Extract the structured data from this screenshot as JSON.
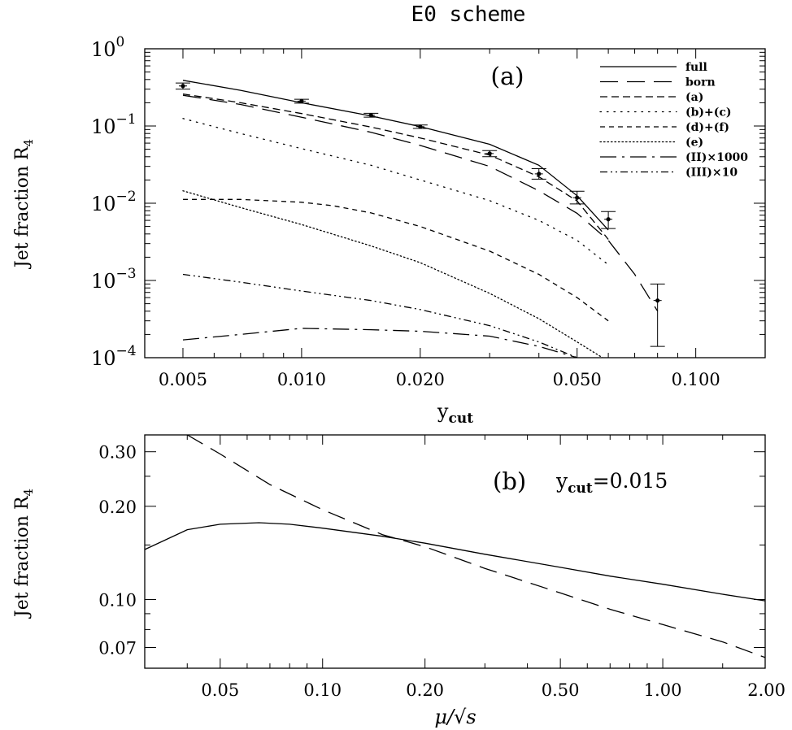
{
  "figure_title": "E0 scheme",
  "chart_data": [
    {
      "type": "line",
      "panel_label": "(a)",
      "xlabel_main": "y",
      "xlabel_sub": "cut",
      "ylabel_main": "Jet fraction R",
      "ylabel_sub": "4",
      "xscale": "log",
      "yscale": "log",
      "xlim": [
        0.004,
        0.15
      ],
      "ylim": [
        0.0001,
        1
      ],
      "x_ticks": [
        {
          "value": 0.005,
          "label": "0.005"
        },
        {
          "value": 0.01,
          "label": "0.010"
        },
        {
          "value": 0.02,
          "label": "0.020"
        },
        {
          "value": 0.05,
          "label": "0.050"
        },
        {
          "value": 0.1,
          "label": "0.100"
        }
      ],
      "y_ticks": [
        {
          "value": 1,
          "base": "10",
          "exp": "0"
        },
        {
          "value": 0.1,
          "base": "10",
          "exp": "−1"
        },
        {
          "value": 0.01,
          "base": "10",
          "exp": "−2"
        },
        {
          "value": 0.001,
          "base": "10",
          "exp": "−3"
        },
        {
          "value": 0.0001,
          "base": "10",
          "exp": "−4"
        }
      ],
      "legend_position": "top-right",
      "series": [
        {
          "name": "full",
          "style": "solid",
          "x": [
            0.005,
            0.007,
            0.01,
            0.015,
            0.02,
            0.03,
            0.04,
            0.05,
            0.06
          ],
          "y": [
            0.39,
            0.29,
            0.2,
            0.135,
            0.098,
            0.058,
            0.031,
            0.0125,
            0.0045
          ]
        },
        {
          "name": "born",
          "style": "longdash",
          "x": [
            0.005,
            0.007,
            0.01,
            0.015,
            0.02,
            0.03,
            0.04,
            0.05,
            0.06,
            0.07,
            0.08
          ],
          "y": [
            0.25,
            0.19,
            0.13,
            0.083,
            0.056,
            0.03,
            0.0145,
            0.0074,
            0.0033,
            0.0012,
            0.0004
          ]
        },
        {
          "name": "(a)",
          "style": "dash",
          "x": [
            0.005,
            0.007,
            0.01,
            0.015,
            0.02,
            0.03,
            0.04,
            0.05,
            0.06
          ],
          "y": [
            0.26,
            0.2,
            0.145,
            0.097,
            0.07,
            0.042,
            0.022,
            0.0107,
            0.0034
          ]
        },
        {
          "name": "(b)+(c)",
          "style": "dot-sparse",
          "x": [
            0.005,
            0.007,
            0.01,
            0.015,
            0.02,
            0.03,
            0.04,
            0.05,
            0.06
          ],
          "y": [
            0.125,
            0.08,
            0.051,
            0.031,
            0.02,
            0.0108,
            0.006,
            0.0033,
            0.0016
          ]
        },
        {
          "name": "(d)+(f)",
          "style": "shortdash",
          "x": [
            0.005,
            0.007,
            0.01,
            0.012,
            0.015,
            0.02,
            0.03,
            0.04,
            0.05,
            0.06
          ],
          "y": [
            0.0112,
            0.0112,
            0.0103,
            0.0093,
            0.0075,
            0.005,
            0.0024,
            0.0012,
            0.0006,
            0.0003
          ]
        },
        {
          "name": "(e)",
          "style": "dot-dense",
          "x": [
            0.005,
            0.007,
            0.01,
            0.015,
            0.02,
            0.03,
            0.04,
            0.05,
            0.058
          ],
          "y": [
            0.0145,
            0.0088,
            0.0053,
            0.0028,
            0.0017,
            0.00068,
            0.00032,
            0.00016,
            0.0001
          ]
        },
        {
          "name": "(II)×1000",
          "style": "dashdot",
          "x": [
            0.005,
            0.007,
            0.01,
            0.015,
            0.02,
            0.03,
            0.04,
            0.05
          ],
          "y": [
            0.00017,
            0.0002,
            0.00024,
            0.00023,
            0.00022,
            0.00019,
            0.00014,
            0.0001
          ]
        },
        {
          "name": "(III)×10",
          "style": "dashdotdot",
          "x": [
            0.005,
            0.007,
            0.01,
            0.015,
            0.02,
            0.03,
            0.04,
            0.05
          ],
          "y": [
            0.0012,
            0.00095,
            0.00073,
            0.00055,
            0.00042,
            0.00026,
            0.00016,
            0.0001
          ]
        }
      ],
      "data_points": [
        {
          "x": 0.005,
          "y": 0.33,
          "ylow": 0.3,
          "yhigh": 0.36
        },
        {
          "x": 0.01,
          "y": 0.21,
          "ylow": 0.198,
          "yhigh": 0.222
        },
        {
          "x": 0.015,
          "y": 0.138,
          "ylow": 0.13,
          "yhigh": 0.146
        },
        {
          "x": 0.02,
          "y": 0.098,
          "ylow": 0.093,
          "yhigh": 0.103
        },
        {
          "x": 0.03,
          "y": 0.044,
          "ylow": 0.04,
          "yhigh": 0.048
        },
        {
          "x": 0.04,
          "y": 0.024,
          "ylow": 0.0205,
          "yhigh": 0.028
        },
        {
          "x": 0.05,
          "y": 0.0118,
          "ylow": 0.0098,
          "yhigh": 0.0143
        },
        {
          "x": 0.06,
          "y": 0.0062,
          "ylow": 0.0047,
          "yhigh": 0.0078
        },
        {
          "x": 0.08,
          "y": 0.00055,
          "ylow": 0.00014,
          "yhigh": 0.0009
        }
      ]
    },
    {
      "type": "line",
      "panel_label": "(b)",
      "annotation_main": "y",
      "annotation_sub": "cut",
      "annotation_value": "=0.015",
      "xlabel": "μ/√s",
      "ylabel_main": "Jet fraction R",
      "ylabel_sub": "4",
      "xscale": "log",
      "yscale": "log",
      "xlim": [
        0.03,
        2.0
      ],
      "ylim": [
        0.06,
        0.34
      ],
      "x_ticks": [
        {
          "value": 0.05,
          "label": "0.05"
        },
        {
          "value": 0.1,
          "label": "0.10"
        },
        {
          "value": 0.2,
          "label": "0.20"
        },
        {
          "value": 0.5,
          "label": "0.50"
        },
        {
          "value": 1.0,
          "label": "1.00"
        },
        {
          "value": 2.0,
          "label": "2.00"
        }
      ],
      "y_ticks": [
        {
          "value": 0.3,
          "label": "0.30"
        },
        {
          "value": 0.2,
          "label": "0.20"
        },
        {
          "value": 0.1,
          "label": "0.10"
        },
        {
          "value": 0.07,
          "label": "0.07"
        }
      ],
      "series": [
        {
          "style": "solid",
          "x": [
            0.03,
            0.04,
            0.05,
            0.065,
            0.08,
            0.1,
            0.15,
            0.2,
            0.3,
            0.5,
            0.7,
            1.0,
            1.5,
            2.0
          ],
          "y": [
            0.145,
            0.168,
            0.175,
            0.177,
            0.175,
            0.17,
            0.16,
            0.152,
            0.14,
            0.127,
            0.119,
            0.112,
            0.104,
            0.099
          ]
        },
        {
          "style": "longdash",
          "x": [
            0.04,
            0.05,
            0.07,
            0.1,
            0.15,
            0.2,
            0.3,
            0.5,
            0.7,
            1.0,
            1.5,
            2.0
          ],
          "y": [
            0.34,
            0.295,
            0.235,
            0.195,
            0.162,
            0.148,
            0.126,
            0.105,
            0.093,
            0.083,
            0.073,
            0.065
          ]
        }
      ]
    }
  ]
}
